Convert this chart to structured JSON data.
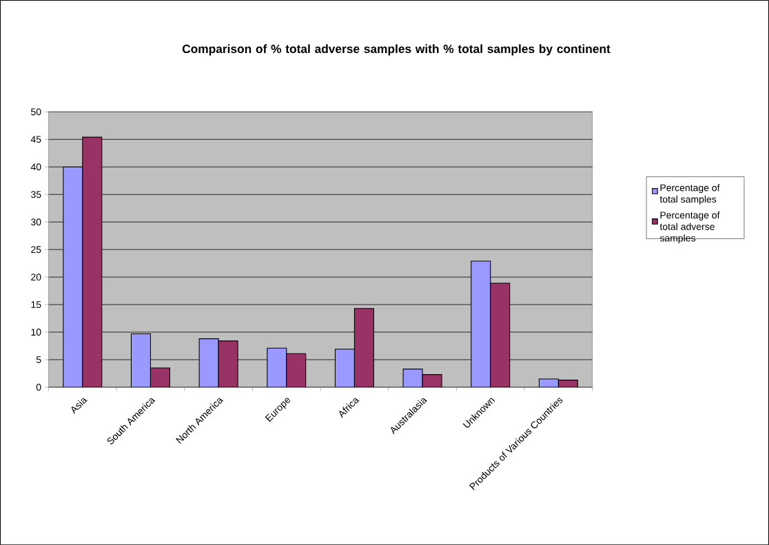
{
  "chart_data": {
    "type": "bar",
    "title": "Comparison of % total adverse samples with % total samples by continent",
    "categories": [
      "Asia",
      "South America",
      "North America",
      "Europe",
      "Africa",
      "Australasia",
      "Unknown",
      "Products of Various Countries"
    ],
    "series": [
      {
        "name": "Percentage of total samples",
        "color": "#9999ff",
        "values": [
          40,
          9.7,
          8.8,
          7.1,
          6.9,
          3.3,
          22.9,
          1.5
        ]
      },
      {
        "name": "Percentage of total adverse samples",
        "color": "#993366",
        "values": [
          45.4,
          3.5,
          8.4,
          6.1,
          14.3,
          2.3,
          18.9,
          1.3
        ]
      }
    ],
    "ylim": [
      0,
      50
    ],
    "yticks": [
      0,
      5,
      10,
      15,
      20,
      25,
      30,
      35,
      40,
      45,
      50
    ],
    "grid": "y",
    "legend": "right"
  }
}
